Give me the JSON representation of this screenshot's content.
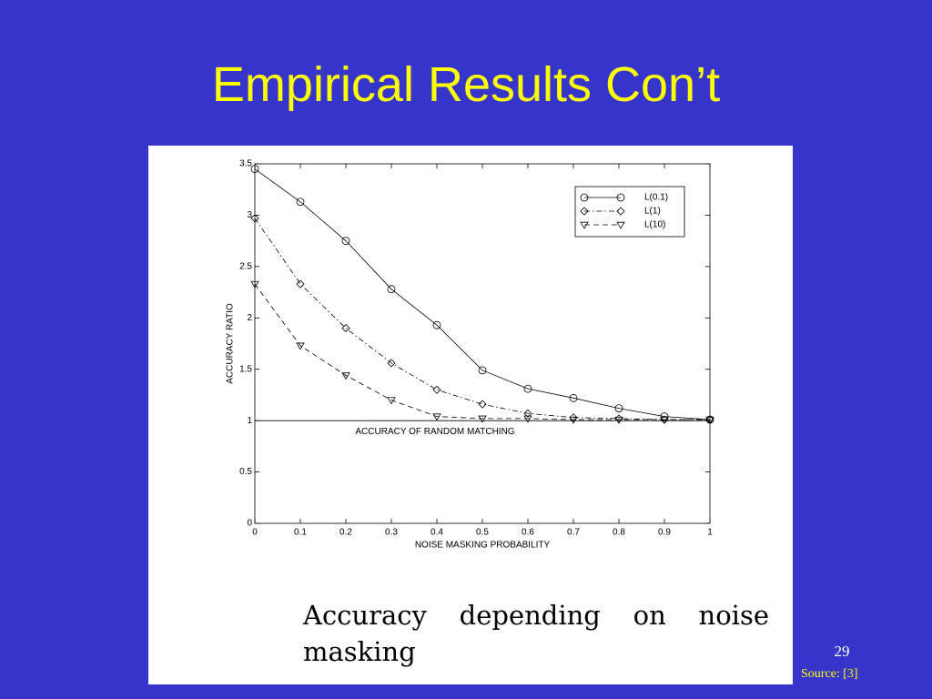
{
  "slide": {
    "title": "Empirical Results Con’t",
    "caption": "Accuracy depending on noise masking",
    "page_number": "29",
    "source": "Source: [3]"
  },
  "chart_data": {
    "type": "line",
    "x_label": "NOISE MASKING PROBABILITY",
    "y_label": "ACCURACY RATIO",
    "annotation": "ACCURACY OF RANDOM MATCHING",
    "reference_line": 1,
    "x": [
      0,
      0.1,
      0.2,
      0.3,
      0.4,
      0.5,
      0.6,
      0.7,
      0.8,
      0.9,
      1
    ],
    "series": [
      {
        "name": "L(0.1)",
        "color": "#000000",
        "marker": "circle",
        "line_style": "solid",
        "values": [
          3.45,
          3.13,
          2.75,
          2.28,
          1.93,
          1.49,
          1.31,
          1.22,
          1.12,
          1.04,
          1.01
        ]
      },
      {
        "name": "L(1)",
        "color": "#000000",
        "marker": "diamond",
        "line_style": "dashdot",
        "values": [
          2.97,
          2.33,
          1.9,
          1.56,
          1.3,
          1.16,
          1.07,
          1.03,
          1.02,
          1.01,
          1.01
        ]
      },
      {
        "name": "L(10)",
        "color": "#000000",
        "marker": "triangle-down",
        "line_style": "dashed",
        "values": [
          2.33,
          1.73,
          1.44,
          1.2,
          1.04,
          1.02,
          1.02,
          1.01,
          1.01,
          1.01,
          1.01
        ]
      }
    ],
    "xlim": [
      0,
      1
    ],
    "xticks": [
      0,
      0.1,
      0.2,
      0.3,
      0.4,
      0.5,
      0.6,
      0.7,
      0.8,
      0.9,
      1
    ],
    "ylim": [
      0,
      3.5
    ],
    "yticks": [
      0,
      0.5,
      1,
      1.5,
      2,
      2.5,
      3,
      3.5
    ],
    "legend": "upper-right",
    "grid": false
  }
}
